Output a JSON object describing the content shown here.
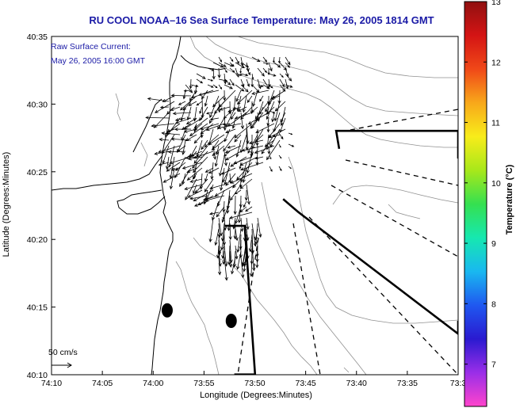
{
  "chart_data": {
    "type": "vector-map",
    "title": "RU COOL  NOAA–16  Sea Surface Temperature:  May 26, 2005 1814 GMT",
    "annotation_lines": [
      "Raw Surface Current:",
      "May 26, 2005 16:00 GMT"
    ],
    "xlabel": "Longitude (Degrees:Minutes)",
    "ylabel": "Latitude (Degrees:Minutes)",
    "x_ticks": [
      "74:10",
      "74:05",
      "74:00",
      "73:55",
      "73:50",
      "73:45",
      "73:40",
      "73:35",
      "73:3"
    ],
    "y_ticks": [
      "40:35",
      "40:30",
      "40:25",
      "40:20",
      "40:15",
      "40:10"
    ],
    "xlim_minutes_west": [
      10,
      30
    ],
    "ylim_minutes_north": [
      10,
      35
    ],
    "scale_label": "50 cm/s",
    "colorbar": {
      "label": "Temperature (°C)",
      "ticks": [
        "13",
        "12",
        "11",
        "10",
        "9",
        "8",
        "7"
      ],
      "range": [
        6.3,
        13
      ],
      "colors": [
        "#ff44cc",
        "#9a2ee8",
        "#2a1ad0",
        "#1f58f0",
        "#19b8f0",
        "#16e8b0",
        "#35e050",
        "#a8e81a",
        "#f8ec1a",
        "#f8a81a",
        "#f04818",
        "#d41414",
        "#901010"
      ]
    },
    "shipping_lanes": [
      {
        "name": "lane-south",
        "outline": [
          [
            73.867,
            40.167
          ],
          [
            73.833,
            40.167
          ],
          [
            73.85,
            40.35
          ],
          [
            73.883,
            40.35
          ]
        ]
      },
      {
        "name": "lane-east",
        "outline": [
          [
            73.695,
            40.445
          ],
          [
            73.7,
            40.467
          ],
          [
            73.5,
            40.467
          ],
          [
            73.5,
            40.433
          ]
        ]
      },
      {
        "name": "lane-southeast",
        "outline": [
          [
            73.787,
            40.383
          ],
          [
            73.762,
            40.367
          ],
          [
            73.5,
            40.217
          ],
          [
            73.5,
            40.233
          ]
        ]
      }
    ],
    "markers": [
      {
        "name": "station-1",
        "lon": 73.977,
        "lat": 40.246
      },
      {
        "name": "station-2",
        "lon": 73.872,
        "lat": 40.233
      }
    ]
  }
}
